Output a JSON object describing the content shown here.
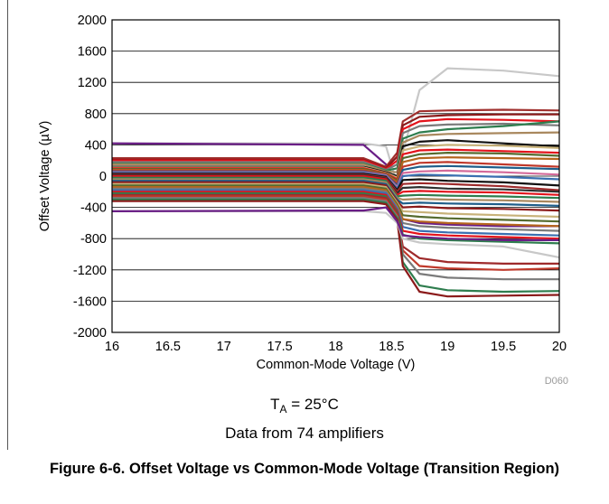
{
  "chart_data": {
    "type": "line",
    "title": "",
    "xlabel": "Common-Mode Voltage (V)",
    "ylabel": "Offset Voltage (µV)",
    "xlim": [
      16,
      20
    ],
    "ylim": [
      -2000,
      2000
    ],
    "x_ticks": [
      "16",
      "16.5",
      "17",
      "17.5",
      "18",
      "18.5",
      "19",
      "19.5",
      "20"
    ],
    "y_ticks": [
      "2000",
      "1600",
      "1200",
      "800",
      "400",
      "0",
      "-400",
      "-800",
      "-1200",
      "-1600",
      "-2000"
    ],
    "grid": "horizontal",
    "watermark": "D060",
    "transition_x": [
      18.25,
      18.45
    ],
    "x": [
      16,
      18.25,
      18.45,
      18.55,
      18.6,
      18.75,
      19.0,
      19.5,
      20
    ],
    "series_colors": [
      "#6a1e86",
      "#e3121b",
      "#c0392b",
      "#8b1a1a",
      "#111111",
      "#a9885e",
      "#2e7d4e",
      "#1f5e8a",
      "#7a7a7a",
      "#c8b27a",
      "#556b2f",
      "#b5651d",
      "#d46a9a",
      "#3a6fb0",
      "#9e2a2b",
      "#2f2f2f"
    ],
    "series": [
      {
        "values": [
          420,
          420,
          380,
          -100,
          300,
          1100,
          1380,
          1350,
          1280
        ],
        "color": "#c8c8c8"
      },
      {
        "values": [
          420,
          400,
          150,
          -450,
          -550,
          -600,
          -620,
          -640,
          -640
        ],
        "color": "#6a1e86"
      },
      {
        "values": [
          230,
          230,
          120,
          300,
          700,
          830,
          840,
          850,
          840
        ],
        "color": "#a0302e"
      },
      {
        "values": [
          210,
          210,
          100,
          250,
          650,
          760,
          780,
          790,
          790
        ],
        "color": "#8b1a1a"
      },
      {
        "values": [
          200,
          200,
          90,
          200,
          600,
          700,
          730,
          720,
          700
        ],
        "color": "#e3121b"
      },
      {
        "values": [
          180,
          180,
          80,
          150,
          550,
          640,
          660,
          670,
          650
        ],
        "color": "#7a7a7a"
      },
      {
        "values": [
          160,
          160,
          70,
          100,
          480,
          560,
          600,
          640,
          700
        ],
        "color": "#2e7d4e"
      },
      {
        "values": [
          150,
          150,
          60,
          50,
          430,
          520,
          540,
          550,
          560
        ],
        "color": "#a9885e"
      },
      {
        "values": [
          120,
          120,
          50,
          0,
          380,
          440,
          460,
          420,
          380
        ],
        "color": "#111111"
      },
      {
        "values": [
          110,
          110,
          40,
          -20,
          330,
          380,
          400,
          390,
          360
        ],
        "color": "#c8b27a"
      },
      {
        "values": [
          100,
          100,
          35,
          -40,
          280,
          330,
          340,
          320,
          300
        ],
        "color": "#e3121b"
      },
      {
        "values": [
          90,
          90,
          30,
          -60,
          230,
          280,
          300,
          290,
          260
        ],
        "color": "#556b2f"
      },
      {
        "values": [
          80,
          80,
          25,
          -80,
          180,
          230,
          240,
          230,
          220
        ],
        "color": "#b5651d"
      },
      {
        "values": [
          70,
          70,
          20,
          -100,
          120,
          170,
          180,
          150,
          120
        ],
        "color": "#c0392b"
      },
      {
        "values": [
          60,
          60,
          15,
          -120,
          80,
          120,
          130,
          110,
          90
        ],
        "color": "#1f5e8a"
      },
      {
        "values": [
          50,
          50,
          10,
          -140,
          40,
          60,
          70,
          50,
          20
        ],
        "color": "#d46a9a"
      },
      {
        "values": [
          40,
          40,
          0,
          -160,
          0,
          20,
          10,
          -10,
          -40
        ],
        "color": "#3a6fb0"
      },
      {
        "values": [
          30,
          30,
          -10,
          -180,
          -50,
          -40,
          -60,
          -80,
          -120
        ],
        "color": "#111111"
      },
      {
        "values": [
          20,
          20,
          -20,
          -200,
          -100,
          -90,
          -100,
          -130,
          -180
        ],
        "color": "#9e2a2b"
      },
      {
        "values": [
          10,
          10,
          -30,
          -220,
          -150,
          -140,
          -160,
          -170,
          -200
        ],
        "color": "#2f2f2f"
      },
      {
        "values": [
          0,
          0,
          -40,
          -240,
          -200,
          -190,
          -200,
          -210,
          -240
        ],
        "color": "#e3121b"
      },
      {
        "values": [
          -20,
          -20,
          -60,
          -260,
          -250,
          -240,
          -250,
          -260,
          -280
        ],
        "color": "#2e7d4e"
      },
      {
        "values": [
          -40,
          -40,
          -80,
          -280,
          -300,
          -290,
          -300,
          -310,
          -330
        ],
        "color": "#a9885e"
      },
      {
        "values": [
          -60,
          -60,
          -100,
          -300,
          -350,
          -340,
          -350,
          -360,
          -380
        ],
        "color": "#1f5e8a"
      },
      {
        "values": [
          -80,
          -80,
          -120,
          -320,
          -400,
          -390,
          -410,
          -420,
          -440
        ],
        "color": "#8b1a1a"
      },
      {
        "values": [
          -100,
          -100,
          -140,
          -340,
          -450,
          -460,
          -480,
          -500,
          -520
        ],
        "color": "#c8b27a"
      },
      {
        "values": [
          -120,
          -120,
          -160,
          -360,
          -500,
          -520,
          -540,
          -560,
          -580
        ],
        "color": "#556b2f"
      },
      {
        "values": [
          -140,
          -140,
          -180,
          -380,
          -550,
          -580,
          -600,
          -620,
          -640
        ],
        "color": "#b5651d"
      },
      {
        "values": [
          -160,
          -160,
          -200,
          -400,
          -600,
          -640,
          -660,
          -680,
          -700
        ],
        "color": "#7a7a7a"
      },
      {
        "values": [
          -180,
          -180,
          -220,
          -420,
          -650,
          -700,
          -720,
          -740,
          -760
        ],
        "color": "#3a6fb0"
      },
      {
        "values": [
          -200,
          -200,
          -240,
          -440,
          -700,
          -740,
          -760,
          -780,
          -800
        ],
        "color": "#e3121b"
      },
      {
        "values": [
          -220,
          -220,
          -260,
          -460,
          -750,
          -800,
          -820,
          -840,
          -860
        ],
        "color": "#2e7d4e"
      },
      {
        "values": [
          -240,
          -240,
          -280,
          -480,
          -900,
          -1050,
          -1100,
          -1120,
          -1120
        ],
        "color": "#9e2a2b"
      },
      {
        "values": [
          -260,
          -260,
          -300,
          -500,
          -950,
          -1150,
          -1180,
          -1200,
          -1180
        ],
        "color": "#c0392b"
      },
      {
        "values": [
          -280,
          -280,
          -320,
          -520,
          -1000,
          -1250,
          -1300,
          -1320,
          -1320
        ],
        "color": "#7a7a7a"
      },
      {
        "values": [
          -300,
          -300,
          -340,
          -540,
          -1100,
          -1400,
          -1460,
          -1480,
          -1470
        ],
        "color": "#2e7d4e"
      },
      {
        "values": [
          -320,
          -320,
          -360,
          -560,
          -1150,
          -1480,
          -1540,
          -1530,
          -1520
        ],
        "color": "#8b1a1a"
      },
      {
        "values": [
          -450,
          -450,
          -470,
          -600,
          -800,
          -850,
          -870,
          -900,
          -1040
        ],
        "color": "#c8c8c8"
      },
      {
        "values": [
          -450,
          -440,
          -400,
          -580,
          -760,
          -780,
          -800,
          -820,
          -820
        ],
        "color": "#6a1e86"
      }
    ]
  },
  "conditions": {
    "ta_symbol": "T",
    "ta_subscript": "A",
    "ta_value": " = 25°C",
    "data_note": "Data from 74 amplifiers"
  },
  "caption": "Figure 6-6. Offset Voltage vs Common-Mode Voltage (Transition Region)"
}
